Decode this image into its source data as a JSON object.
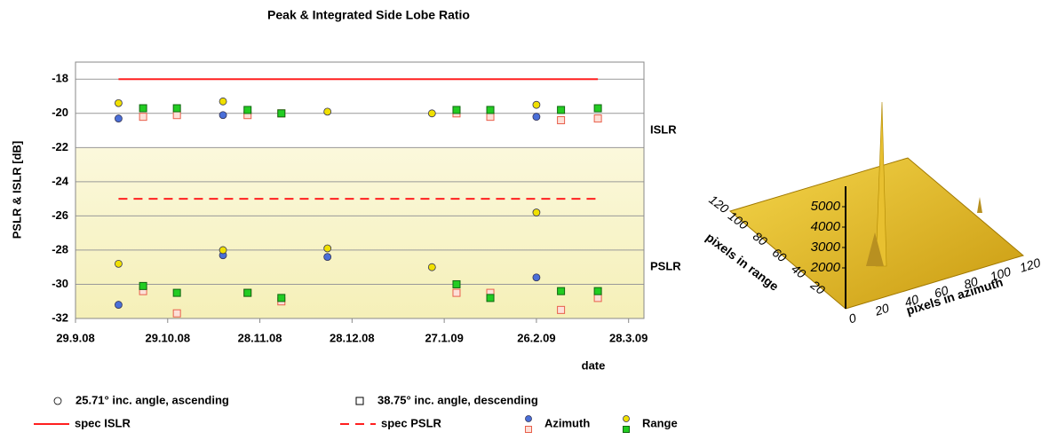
{
  "chart_data": [
    {
      "type": "scatter",
      "title": "Peak & Integrated Side Lobe Ratio",
      "ylabel": "PSLR & ISLR [dB]",
      "xlabel": "date",
      "xlim": [
        "2008-09-29",
        "2009-04-02"
      ],
      "xticks": [
        {
          "value": "2008-09-29",
          "label": "29.9.08"
        },
        {
          "value": "2008-10-29",
          "label": "29.10.08"
        },
        {
          "value": "2008-11-28",
          "label": "28.11.08"
        },
        {
          "value": "2008-12-28",
          "label": "28.12.08"
        },
        {
          "value": "2009-01-27",
          "label": "27.1.09"
        },
        {
          "value": "2009-02-26",
          "label": "26.2.09"
        },
        {
          "value": "2009-03-28",
          "label": "28.3.09"
        }
      ],
      "ylim": [
        -32,
        -17
      ],
      "yticks": [
        -18,
        -20,
        -22,
        -24,
        -26,
        -28,
        -30,
        -32
      ],
      "grid": true,
      "region_labels": [
        {
          "text": "ISLR",
          "y": -21
        },
        {
          "text": "PSLR",
          "y": -29
        }
      ],
      "groups": [
        {
          "name": "25.71° inc. angle, ascending",
          "marker": "circle",
          "x": [
            "2008-10-13",
            "2008-11-16",
            "2008-12-20",
            "2009-01-23",
            "2009-02-26"
          ],
          "series": [
            {
              "name": "Azimuth",
              "color": "#4a6fd8",
              "values": [
                -20.3,
                -20.1,
                null,
                null,
                -20.2
              ]
            },
            {
              "name": "Range",
              "color": "#f0e000",
              "values": [
                -19.4,
                -19.3,
                -19.9,
                -20.0,
                -19.5
              ]
            },
            {
              "name": "Azimuth",
              "color": "#4a6fd8",
              "values": [
                -31.2,
                -28.3,
                -28.4,
                null,
                -29.6
              ]
            },
            {
              "name": "Range",
              "color": "#f0e000",
              "values": [
                -28.8,
                -28.0,
                -27.9,
                -29.0,
                -25.8
              ]
            }
          ]
        },
        {
          "name": "38.75° inc. angle, descending",
          "marker": "square",
          "x": [
            "2008-10-21",
            "2008-11-01",
            "2008-11-24",
            "2008-12-05",
            "2009-01-31",
            "2009-02-11",
            "2009-03-06",
            "2009-03-18"
          ],
          "series": [
            {
              "name": "Azimuth",
              "color": "#e8604c",
              "values": [
                -20.2,
                -20.1,
                -20.1,
                -20.0,
                -20.0,
                -20.2,
                -20.4,
                -20.3
              ]
            },
            {
              "name": "Range",
              "color": "#22cc22",
              "values": [
                -19.7,
                -19.7,
                -19.8,
                -20.0,
                -19.8,
                -19.8,
                -19.8,
                -19.7
              ]
            },
            {
              "name": "Azimuth",
              "color": "#e8604c",
              "values": [
                -30.4,
                -31.7,
                -30.5,
                -31.0,
                -30.5,
                -30.5,
                -31.5,
                -30.8
              ]
            },
            {
              "name": "Range",
              "color": "#22cc22",
              "values": [
                -30.1,
                -30.5,
                -30.5,
                -30.8,
                -30.0,
                -30.8,
                -30.4,
                -30.4
              ]
            }
          ]
        }
      ],
      "spec_lines": [
        {
          "name": "spec ISLR",
          "value": -18,
          "color": "#ff2020",
          "dashed": false,
          "x": [
            "2008-10-13",
            "2009-03-18"
          ]
        },
        {
          "name": "spec PSLR",
          "value": -25,
          "color": "#ff2020",
          "dashed": true,
          "x": [
            "2008-10-13",
            "2009-03-18"
          ]
        }
      ],
      "legend": {
        "markers": [
          "25.71° inc. angle, ascending",
          "38.75° inc. angle, descending"
        ],
        "colors": [
          "Azimuth",
          "Range"
        ]
      }
    },
    {
      "type": "surface",
      "zticks": [
        2000,
        3000,
        4000,
        5000
      ],
      "x_label": "pixels in azimuth",
      "xticks": [
        0,
        20,
        40,
        60,
        80,
        100,
        120
      ],
      "y_label": "pixels in range",
      "yticks": [
        20,
        40,
        60,
        80,
        100,
        120
      ],
      "zlim": [
        0,
        6000
      ],
      "xlim": [
        0,
        120
      ],
      "ylim": [
        0,
        120
      ]
    }
  ]
}
